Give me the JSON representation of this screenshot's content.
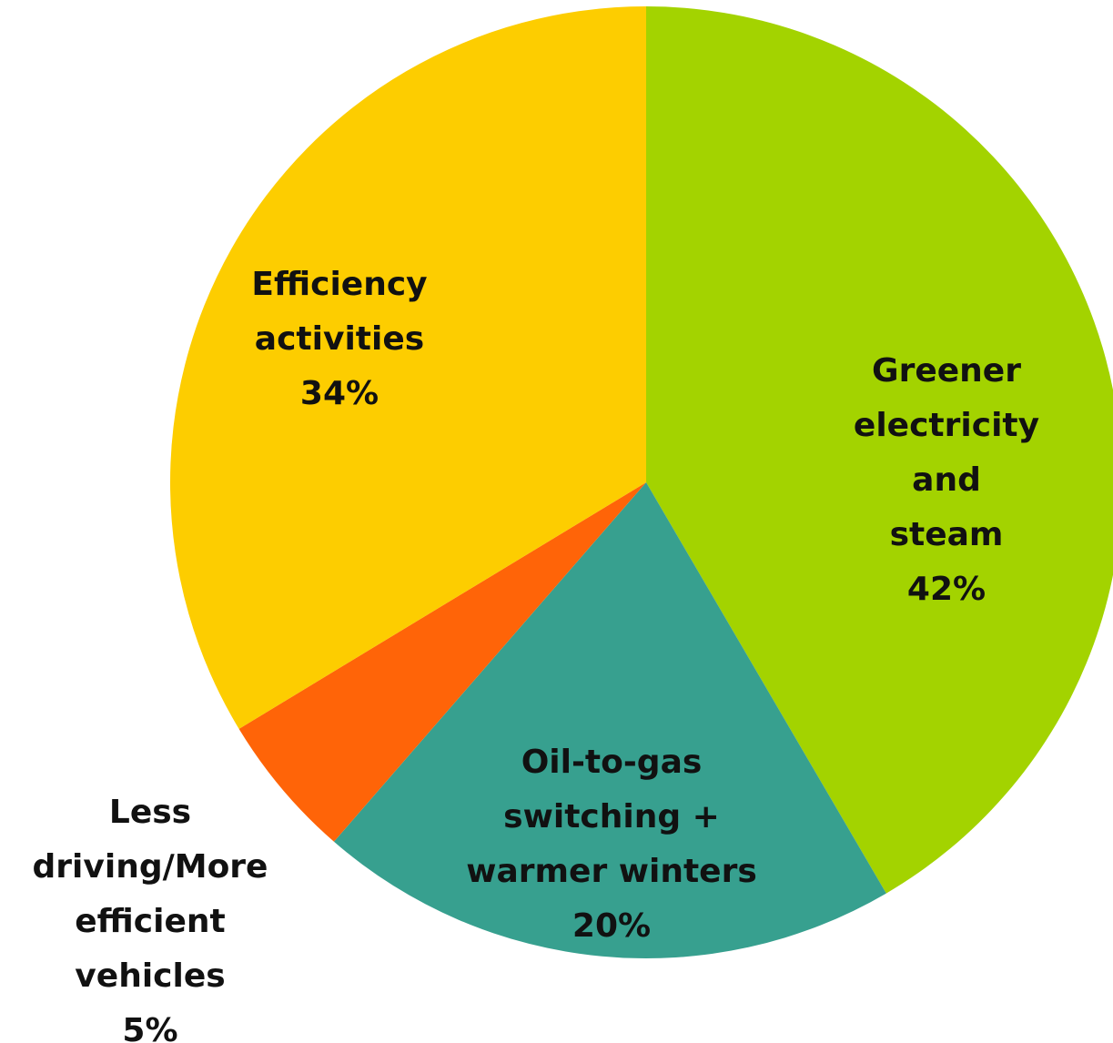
{
  "chart_data": {
    "type": "pie",
    "categories": [
      "Greener\nelectricity and\nsteam",
      "Oil-to-gas\nswitching +\nwarmer winters",
      "Less\ndriving/More\nefficient\nvehicles",
      "Efficiency\nactivities"
    ],
    "values": [
      42,
      20,
      5,
      34
    ],
    "value_labels": [
      "42%",
      "20%",
      "5%",
      "34%"
    ],
    "colors": [
      "#a3d300",
      "#37a08f",
      "#ff6408",
      "#fdcd00"
    ]
  }
}
